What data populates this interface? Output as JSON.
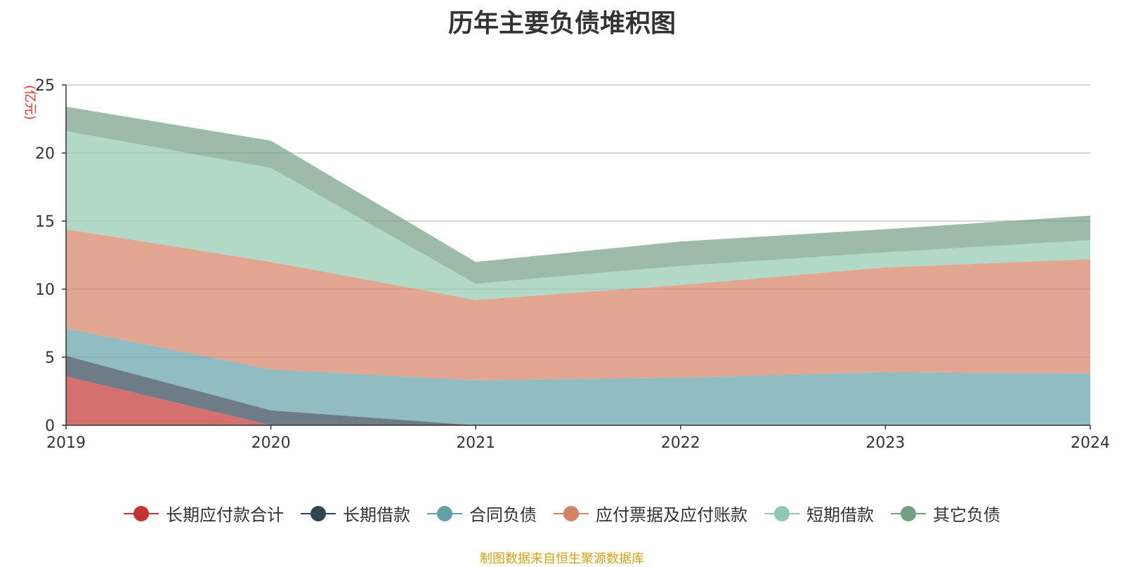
{
  "chart_data": {
    "type": "area",
    "stacked": true,
    "title": "历年主要负债堆积图",
    "unit_label": "(亿元)",
    "x": [
      "2019",
      "2020",
      "2021",
      "2022",
      "2023",
      "2024"
    ],
    "ylim": [
      0,
      25
    ],
    "yticks": [
      "0",
      "5",
      "10",
      "15",
      "20",
      "25"
    ],
    "grid": true,
    "legend_position": "bottom-center",
    "series": [
      {
        "name": "长期应付款合计",
        "values": [
          3.6,
          0.0,
          0.0,
          0.0,
          0.0,
          0.0
        ],
        "color": "#c23531"
      },
      {
        "name": "长期借款",
        "values": [
          1.5,
          1.1,
          0.0,
          0.0,
          0.0,
          0.0
        ],
        "color": "#2f4554"
      },
      {
        "name": "合同负债",
        "values": [
          2.0,
          3.0,
          3.3,
          3.5,
          3.9,
          3.8
        ],
        "color": "#61a0a8"
      },
      {
        "name": "应付票据及应付账款",
        "values": [
          7.3,
          7.9,
          5.9,
          6.8,
          7.7,
          8.4
        ],
        "color": "#d48265"
      },
      {
        "name": "短期借款",
        "values": [
          7.2,
          6.9,
          1.2,
          1.4,
          1.1,
          1.4
        ],
        "color": "#91c7ae"
      },
      {
        "name": "其它负债",
        "values": [
          1.8,
          2.0,
          1.6,
          1.8,
          1.7,
          1.8
        ],
        "color": "#749f83"
      }
    ]
  },
  "source_note": "制图数据来自恒生聚源数据库"
}
